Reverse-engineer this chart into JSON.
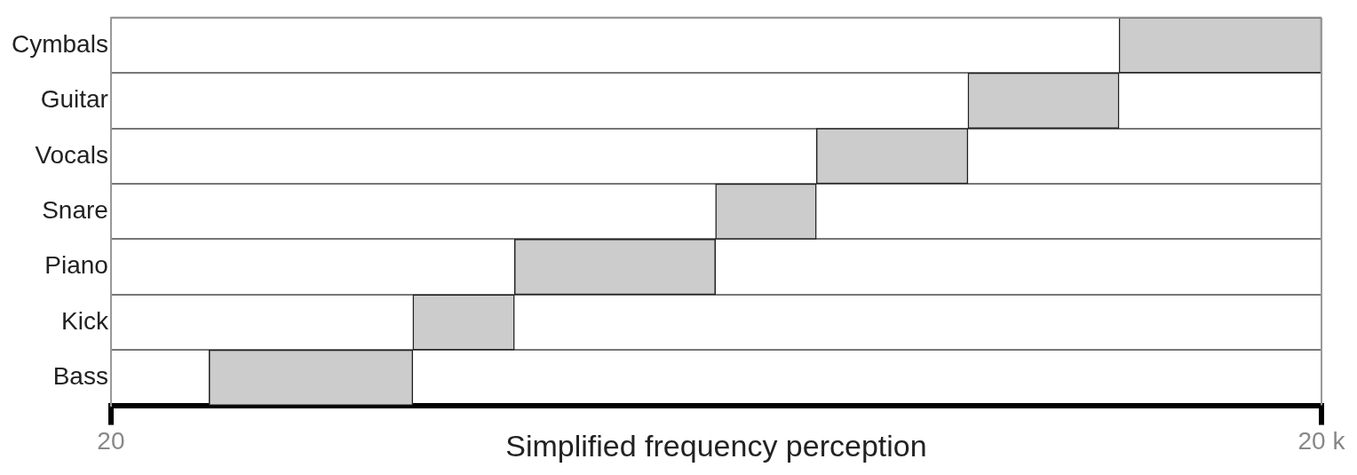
{
  "chart_data": {
    "type": "bar",
    "orientation": "horizontal",
    "categories": [
      "Cymbals",
      "Guitar",
      "Vocals",
      "Snare",
      "Piano",
      "Kick",
      "Bass"
    ],
    "base": [
      6300,
      2660,
      1120,
      630,
      200,
      112,
      35
    ],
    "values": [
      13700,
      3640,
      1540,
      490,
      430,
      88,
      77
    ],
    "color": "#cccccc",
    "xlabel": "Simplified frequency perception",
    "xlim": [
      20,
      20000
    ],
    "xticks": [
      20,
      {
        "value": 20000,
        "label": "20 k"
      }
    ],
    "log": "x",
    "grid": "y"
  }
}
